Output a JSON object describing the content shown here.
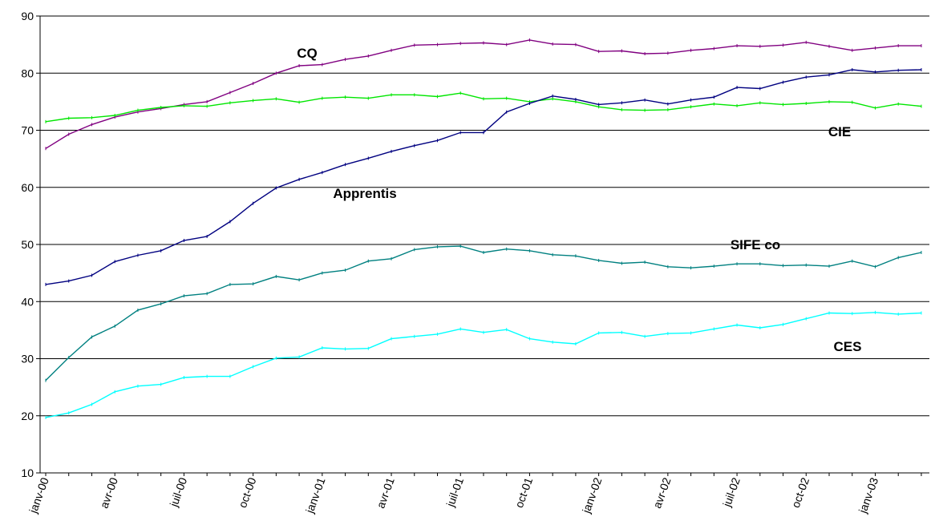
{
  "chart_data": {
    "type": "line",
    "title": "",
    "xlabel": "",
    "ylabel": "",
    "ylim": [
      10,
      90
    ],
    "yticks": [
      10,
      20,
      30,
      40,
      50,
      60,
      70,
      80,
      90
    ],
    "grid": true,
    "legend": "none",
    "x": [
      "janv-00",
      "févr-00",
      "mars-00",
      "avr-00",
      "mai-00",
      "juin-00",
      "juil-00",
      "août-00",
      "sept-00",
      "oct-00",
      "nov-00",
      "déc-00",
      "janv-01",
      "févr-01",
      "mars-01",
      "avr-01",
      "mai-01",
      "juin-01",
      "juil-01",
      "août-01",
      "sept-01",
      "oct-01",
      "nov-01",
      "déc-01",
      "janv-02",
      "févr-02",
      "mars-02",
      "avr-02",
      "mai-02",
      "juin-02",
      "juil-02",
      "août-02",
      "sept-02",
      "oct-02",
      "nov-02",
      "déc-02",
      "janv-03",
      "févr-03",
      "mars-03"
    ],
    "xtick_labels": [
      "janv-00",
      "avr-00",
      "juil-00",
      "oct-00",
      "janv-01",
      "avr-01",
      "juil-01",
      "oct-01",
      "janv-02",
      "avr-02",
      "juil-02",
      "oct-02",
      "janv-03"
    ],
    "series": [
      {
        "name": "CQ",
        "color": "#800080",
        "values": [
          66.8,
          69.3,
          71.0,
          72.3,
          73.2,
          73.8,
          74.5,
          75.0,
          76.6,
          78.2,
          80.0,
          81.3,
          81.5,
          82.4,
          83.0,
          84.0,
          84.9,
          85.0,
          85.2,
          85.3,
          85.0,
          85.8,
          85.1,
          85.0,
          83.8,
          83.9,
          83.4,
          83.5,
          84.0,
          84.3,
          84.8,
          84.7,
          84.9,
          85.4,
          84.7,
          84.0,
          84.4,
          84.8,
          84.8
        ]
      },
      {
        "name": "CIE",
        "color": "#00e600",
        "values": [
          71.5,
          72.1,
          72.2,
          72.6,
          73.5,
          74.0,
          74.3,
          74.2,
          74.8,
          75.2,
          75.5,
          74.9,
          75.6,
          75.8,
          75.6,
          76.2,
          76.2,
          75.9,
          76.5,
          75.5,
          75.6,
          75.0,
          75.5,
          75.0,
          74.1,
          73.6,
          73.5,
          73.6,
          74.1,
          74.6,
          74.3,
          74.8,
          74.5,
          74.7,
          75.0,
          74.9,
          73.9,
          74.6,
          74.2
        ]
      },
      {
        "name": "Apprentis",
        "color": "#000080",
        "values": [
          43.0,
          43.6,
          44.6,
          47.0,
          48.1,
          48.9,
          50.7,
          51.4,
          54.0,
          57.2,
          59.9,
          61.4,
          62.6,
          64.0,
          65.1,
          66.3,
          67.3,
          68.2,
          69.6,
          69.6,
          73.2,
          74.7,
          76.0,
          75.4,
          74.5,
          74.8,
          75.3,
          74.6,
          75.3,
          75.8,
          77.5,
          77.3,
          78.4,
          79.3,
          79.7,
          80.6,
          80.2,
          80.5,
          80.6
        ]
      },
      {
        "name": "SIFE co",
        "color": "#008080",
        "values": [
          26.2,
          30.2,
          33.8,
          35.7,
          38.5,
          39.6,
          41.0,
          41.4,
          43.0,
          43.1,
          44.4,
          43.8,
          45.0,
          45.5,
          47.1,
          47.5,
          49.1,
          49.6,
          49.7,
          48.6,
          49.2,
          48.9,
          48.2,
          48.0,
          47.2,
          46.7,
          46.9,
          46.1,
          45.9,
          46.2,
          46.6,
          46.6,
          46.3,
          46.4,
          46.2,
          47.1,
          46.1,
          47.7,
          48.6
        ]
      },
      {
        "name": "CES",
        "color": "#00ffff",
        "values": [
          19.7,
          20.5,
          22.0,
          24.2,
          25.2,
          25.5,
          26.7,
          26.9,
          26.9,
          28.6,
          30.1,
          30.3,
          31.9,
          31.7,
          31.8,
          33.5,
          33.9,
          34.3,
          35.2,
          34.6,
          35.1,
          33.5,
          32.9,
          32.6,
          34.5,
          34.6,
          33.9,
          34.4,
          34.5,
          35.2,
          35.9,
          35.4,
          36.0,
          37.0,
          38.0,
          37.9,
          38.1,
          37.8,
          38.0
        ]
      }
    ],
    "annotations": [
      {
        "text": "CQ",
        "series": "CQ"
      },
      {
        "text": "CIE",
        "series": "CIE"
      },
      {
        "text": "Apprentis",
        "series": "Apprentis"
      },
      {
        "text": "SIFE co",
        "series": "SIFE co"
      },
      {
        "text": "CES",
        "series": "CES"
      }
    ]
  }
}
